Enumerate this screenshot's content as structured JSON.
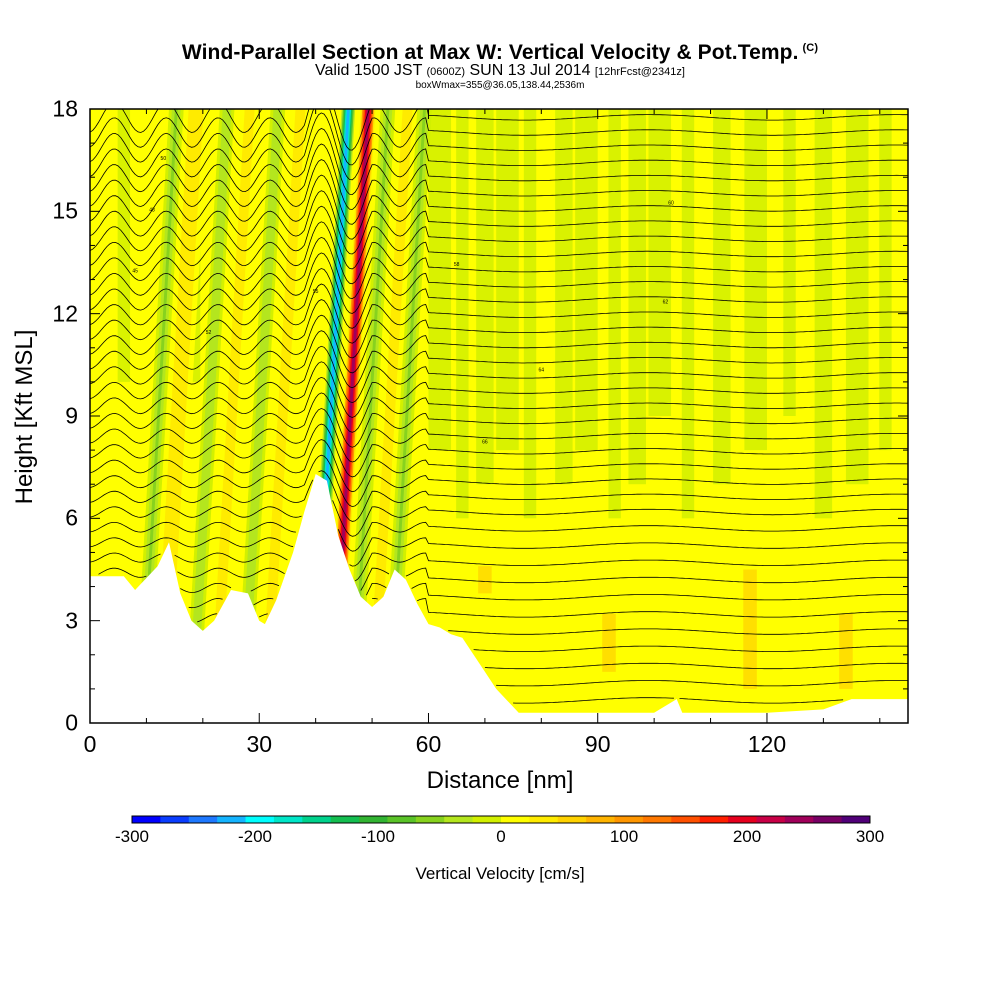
{
  "title": {
    "main": "Wind-Parallel Section at Max W: Vertical Velocity & Pot.Temp.",
    "copyright": "(C)",
    "valid_prefix": "Valid 1500 JST",
    "zulu": "(0600Z)",
    "valid_date": "SUN 13 Jul 2014",
    "forecast": "[12hrFcst@2341z]",
    "box": "boxWmax=355@36.05,138.44,2536m"
  },
  "chart_data": {
    "type": "heatmap",
    "xlabel": "Distance [nm]",
    "ylabel": "Height [Kft MSL]",
    "xlim": [
      0,
      145
    ],
    "ylim": [
      0,
      18
    ],
    "x_ticks": [
      "0",
      "30",
      "60",
      "90",
      "120"
    ],
    "y_ticks": [
      "0",
      "3",
      "6",
      "9",
      "12",
      "15",
      "18"
    ],
    "terrain_profile": {
      "x": [
        0,
        6,
        8,
        12,
        14,
        16,
        18,
        20,
        22,
        25,
        28,
        30,
        31,
        33,
        36,
        38,
        40,
        42,
        44,
        46,
        48,
        50,
        52,
        54,
        56,
        58,
        60,
        62,
        64,
        66,
        68,
        70,
        72,
        76,
        80,
        90,
        100,
        104,
        105,
        110,
        120,
        130,
        135,
        145
      ],
      "h": [
        4.3,
        4.3,
        3.9,
        4.6,
        5.3,
        3.8,
        3.0,
        2.7,
        3.0,
        3.9,
        3.8,
        3.0,
        2.9,
        3.6,
        5.0,
        6.2,
        7.3,
        7.1,
        5.5,
        4.5,
        3.7,
        3.4,
        3.7,
        4.5,
        4.2,
        3.5,
        2.9,
        2.8,
        2.6,
        2.5,
        2.0,
        1.5,
        1.0,
        0.3,
        0.3,
        0.3,
        0.3,
        0.7,
        0.3,
        0.3,
        0.3,
        0.4,
        0.7,
        0.7
      ]
    },
    "updraft_bands": [
      {
        "x": 14.5,
        "w": 50
      },
      {
        "x": 24,
        "w": 45
      },
      {
        "x": 33,
        "w": 40
      },
      {
        "x": 45,
        "w": 300
      },
      {
        "x": 52,
        "w": 45
      }
    ],
    "downdraft_bands": [
      {
        "x": 11,
        "w": -60
      },
      {
        "x": 20,
        "w": -50
      },
      {
        "x": 29,
        "w": -50
      },
      {
        "x": 41.5,
        "w": -260
      },
      {
        "x": 48.5,
        "w": -60
      },
      {
        "x": 55,
        "w": -60
      }
    ],
    "colorbar": {
      "label": "Vertical Velocity [cm/s]",
      "min": -300,
      "max": 300,
      "ticks": [
        "-300",
        "-200",
        "-100",
        "0",
        "100",
        "200",
        "300"
      ],
      "colors": [
        "#0000ff",
        "#0a3dff",
        "#1e78ff",
        "#14b4ff",
        "#00ffff",
        "#00e6c8",
        "#00d28c",
        "#14be50",
        "#32b432",
        "#5ac328",
        "#87d21e",
        "#b4e61e",
        "#d2f000",
        "#ffff00",
        "#ffeb00",
        "#ffd200",
        "#ffb400",
        "#ff9600",
        "#ff7800",
        "#ff5000",
        "#ff1e00",
        "#e6001e",
        "#c80046",
        "#a0005a",
        "#780064",
        "#500078"
      ]
    },
    "theta_contours": {
      "label": "potential temperature",
      "count": 40,
      "inline_labels": [
        "45",
        "48",
        "50",
        "52",
        "55",
        "58",
        "60",
        "62",
        "64",
        "66"
      ]
    },
    "grid": false
  }
}
